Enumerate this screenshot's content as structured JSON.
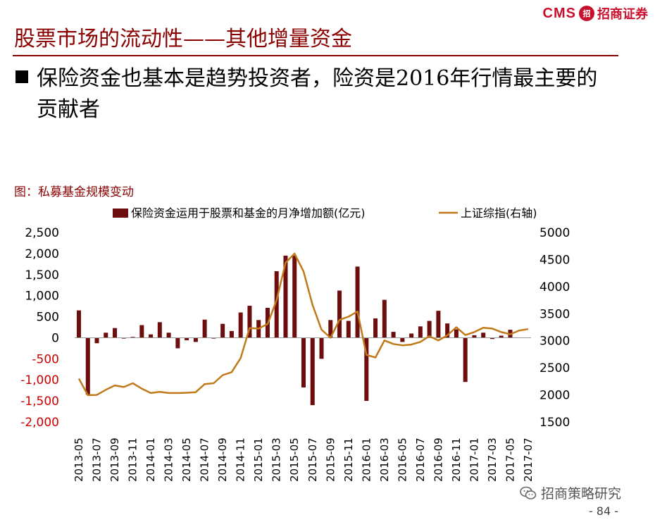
{
  "header": {
    "logo_text": "CMS",
    "logo_seal": "招",
    "company": "招商证券",
    "title": "股票市场的流动性——其他增量资金"
  },
  "bullet": {
    "text": "保险资金也基本是趋势投资者，险资是2016年行情最主要的贡献者"
  },
  "figure": {
    "caption": "图：私募基金规模变动"
  },
  "footer": {
    "brand": "招商策略研究",
    "page": "- 84 -"
  },
  "colors": {
    "title": "#8b0000",
    "bar": "#6e0d0d",
    "line": "#c07a1a",
    "left_axis_text": "#000000",
    "right_axis_text": "#000000"
  },
  "chart_data": {
    "type": "bar",
    "categories": [
      "2013-05",
      "2013-06",
      "2013-07",
      "2013-08",
      "2013-09",
      "2013-10",
      "2013-11",
      "2013-12",
      "2014-01",
      "2014-02",
      "2014-03",
      "2014-04",
      "2014-05",
      "2014-06",
      "2014-07",
      "2014-08",
      "2014-09",
      "2014-10",
      "2014-11",
      "2014-12",
      "2015-01",
      "2015-02",
      "2015-03",
      "2015-04",
      "2015-05",
      "2015-06",
      "2015-07",
      "2015-08",
      "2015-09",
      "2015-10",
      "2015-11",
      "2015-12",
      "2016-01",
      "2016-02",
      "2016-03",
      "2016-04",
      "2016-05",
      "2016-06",
      "2016-07",
      "2016-08",
      "2016-09",
      "2016-10",
      "2016-11",
      "2016-12",
      "2017-01",
      "2017-02",
      "2017-03",
      "2017-04",
      "2017-05",
      "2017-06",
      "2017-07"
    ],
    "x_tick_labels": [
      "2013-05",
      "2013-07",
      "2013-09",
      "2013-11",
      "2014-01",
      "2014-03",
      "2014-05",
      "2014-07",
      "2014-09",
      "2014-11",
      "2015-01",
      "2015-03",
      "2015-05",
      "2015-07",
      "2015-09",
      "2015-11",
      "2016-01",
      "2016-03",
      "2016-05",
      "2016-07",
      "2016-09",
      "2016-11",
      "2017-01",
      "2017-03",
      "2017-05",
      "2017-07"
    ],
    "series": [
      {
        "name": "保险资金运用于股票和基金的月净增加额(亿元)",
        "type": "bar",
        "axis": "left",
        "values": [
          650,
          -1350,
          -130,
          120,
          230,
          -20,
          20,
          300,
          80,
          370,
          120,
          -250,
          -60,
          -100,
          430,
          -20,
          330,
          160,
          600,
          760,
          420,
          710,
          1580,
          1950,
          1950,
          -1180,
          -1600,
          -500,
          420,
          1120,
          400,
          1690,
          -1500,
          460,
          900,
          140,
          -100,
          100,
          270,
          400,
          640,
          340,
          200,
          -1050,
          60,
          120,
          -30,
          50,
          190,
          0,
          0
        ]
      },
      {
        "name": "上证综指(右轴)",
        "type": "line",
        "axis": "right",
        "values": [
          2300,
          1995,
          2000,
          2095,
          2175,
          2145,
          2215,
          2115,
          2035,
          2055,
          2035,
          2035,
          2040,
          2050,
          2200,
          2215,
          2365,
          2420,
          2680,
          3235,
          3225,
          3310,
          3750,
          4440,
          4610,
          4280,
          3660,
          3205,
          3055,
          3385,
          3445,
          3540,
          2740,
          2690,
          3005,
          2940,
          2915,
          2930,
          2980,
          3085,
          3005,
          3100,
          3250,
          3105,
          3160,
          3240,
          3225,
          3160,
          3120,
          3190,
          3215
        ]
      }
    ],
    "left_axis": {
      "min": -2000,
      "max": 2500,
      "ticks": [
        "2,500",
        "2,000",
        "1,500",
        "1,000",
        "500",
        "0",
        "-500",
        "-1,000",
        "-1,500",
        "-2,000"
      ]
    },
    "right_axis": {
      "min": 1500,
      "max": 5000,
      "ticks": [
        "5000",
        "4500",
        "4000",
        "3500",
        "3000",
        "2500",
        "2000",
        "1500"
      ]
    },
    "grid": false,
    "legend_position": "top"
  }
}
